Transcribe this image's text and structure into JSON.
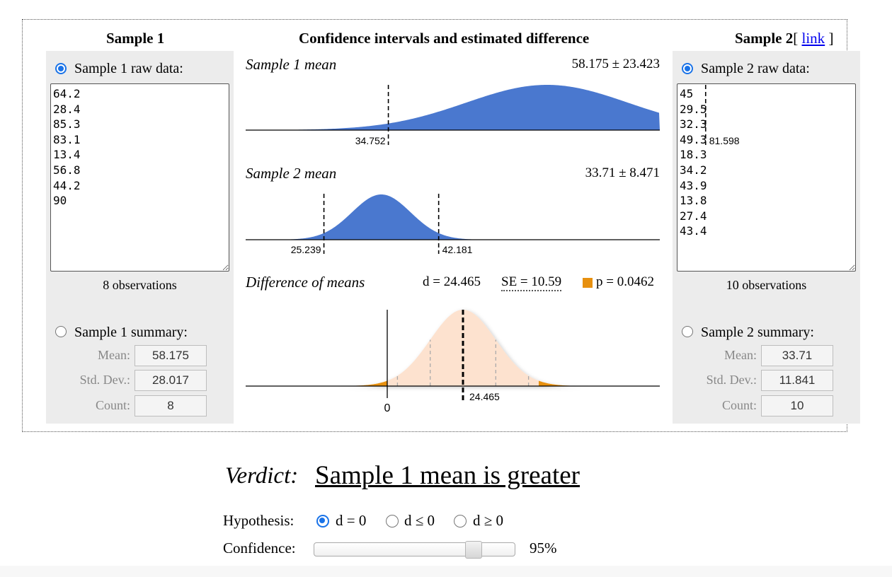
{
  "sample1": {
    "title": "Sample 1",
    "raw_label": "Sample 1 raw data:",
    "raw_data": "64.2\n28.4\n85.3\n83.1\n13.4\n56.8\n44.2\n90",
    "observations": "8 observations",
    "summary_label": "Sample 1 summary:",
    "mean_label": "Mean:",
    "mean": "58.175",
    "std_label": "Std. Dev.:",
    "std": "28.017",
    "count_label": "Count:",
    "count": "8"
  },
  "sample2": {
    "title": "Sample 2",
    "link_open": "[",
    "link_text": "link",
    "link_close": "]",
    "raw_label": "Sample 2 raw data:",
    "raw_data": "45\n29.5\n32.3\n49.3\n18.3\n34.2\n43.9\n13.8\n27.4\n43.4",
    "observations": "10 observations",
    "summary_label": "Sample 2 summary:",
    "mean_label": "Mean:",
    "mean": "33.71",
    "std_label": "Std. Dev.:",
    "std": "11.841",
    "count_label": "Count:",
    "count": "10"
  },
  "center": {
    "title": "Confidence intervals and estimated difference",
    "s1_label": "Sample 1 mean",
    "s1_stat": "58.175 ± 23.423",
    "s1_low": "34.752",
    "s1_high": "81.598",
    "s2_label": "Sample 2 mean",
    "s2_stat": "33.71 ± 8.471",
    "s2_low": "25.239",
    "s2_high": "42.181",
    "diff_label": "Difference of means",
    "d_stat": "d = 24.465",
    "se_stat": "SE = 10.59",
    "p_stat": "p = 0.0462",
    "zero_label": "0",
    "d_label": "24.465"
  },
  "verdict": {
    "label": "Verdict:",
    "text": "Sample 1 mean is greater"
  },
  "hypothesis": {
    "label": "Hypothesis:",
    "options": [
      "d = 0",
      "d ≤ 0",
      "d ≥ 0"
    ],
    "selected": "d = 0"
  },
  "confidence": {
    "label": "Confidence:",
    "value": "95%",
    "level": 0.95
  },
  "colors": {
    "mean_fill": "#4a78cf",
    "diff_fill": "#fde2cf",
    "tail_fill": "#e7900f",
    "panel_bg": "#ececec",
    "radio_blue": "#1a73e8"
  }
}
